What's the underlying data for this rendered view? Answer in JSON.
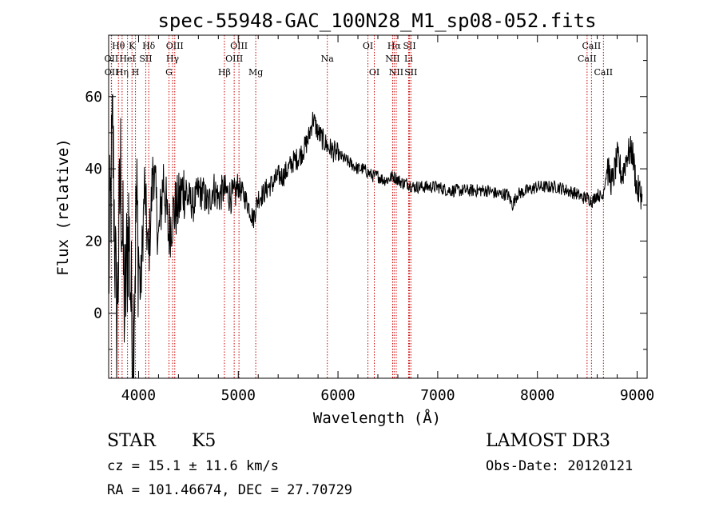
{
  "chart_data": {
    "type": "line",
    "title": "spec-55948-GAC_100N28_M1_sp08-052.fits",
    "xlabel": "Wavelength (Å)",
    "ylabel": "Flux (relative)",
    "xlim": [
      3700,
      9100
    ],
    "ylim": [
      -18,
      77
    ],
    "x_ticks": [
      4000,
      5000,
      6000,
      7000,
      8000,
      9000
    ],
    "y_ticks": [
      0,
      20,
      40,
      60
    ],
    "grid": false,
    "line_color": "#000000",
    "marker_color": "#cc0000",
    "series": [
      {
        "name": "flux",
        "x": [
          3700,
          3740,
          3780,
          3820,
          3860,
          3900,
          3940,
          3980,
          4020,
          4060,
          4100,
          4150,
          4200,
          4250,
          4300,
          4350,
          4400,
          4450,
          4500,
          4550,
          4600,
          4650,
          4700,
          4750,
          4800,
          4850,
          4900,
          4950,
          5000,
          5050,
          5100,
          5150,
          5200,
          5250,
          5300,
          5350,
          5400,
          5450,
          5500,
          5550,
          5600,
          5650,
          5700,
          5750,
          5800,
          5850,
          5900,
          5950,
          6000,
          6050,
          6100,
          6150,
          6200,
          6250,
          6300,
          6350,
          6400,
          6450,
          6500,
          6550,
          6600,
          6650,
          6700,
          6750,
          6800,
          6900,
          7000,
          7100,
          7200,
          7300,
          7400,
          7500,
          7600,
          7700,
          7750,
          7800,
          7900,
          8000,
          8100,
          8200,
          8300,
          8400,
          8450,
          8500,
          8550,
          8600,
          8650,
          8700,
          8750,
          8800,
          8850,
          8900,
          8950,
          9000,
          9050
        ],
        "y": [
          10,
          50,
          -5,
          40,
          0,
          25,
          -10,
          30,
          5,
          35,
          15,
          42,
          20,
          38,
          22,
          28,
          30,
          35,
          32,
          30,
          34,
          33,
          30,
          35,
          32,
          34,
          33,
          32,
          35,
          33,
          30,
          26,
          32,
          33,
          35,
          36,
          38,
          38,
          40,
          42,
          43,
          45,
          48,
          54,
          50,
          48,
          46,
          45,
          44,
          43,
          42,
          41,
          40,
          40,
          39,
          38,
          38,
          37,
          37,
          38,
          37,
          36,
          36,
          35,
          35,
          35,
          35,
          34,
          34,
          34,
          34,
          34,
          33,
          33,
          30,
          33,
          34,
          35,
          35,
          35,
          34,
          33,
          32,
          32,
          31,
          33,
          32,
          40,
          36,
          43,
          38,
          44,
          45,
          34,
          33
        ]
      }
    ],
    "lines": [
      {
        "name": "Hθ",
        "x": 3798,
        "row": 1
      },
      {
        "name": "OII",
        "x": 3727,
        "row": 2
      },
      {
        "name": "OII",
        "x": 3729,
        "row": 3
      },
      {
        "name": "Hη",
        "x": 3835,
        "row": 3
      },
      {
        "name": "HeI",
        "x": 3889,
        "row": 2
      },
      {
        "name": "K",
        "x": 3934,
        "row": 1
      },
      {
        "name": "H",
        "x": 3969,
        "row": 3
      },
      {
        "name": "SII",
        "x": 4072,
        "row": 2
      },
      {
        "name": "Hδ",
        "x": 4102,
        "row": 1
      },
      {
        "name": "OIII",
        "x": 4363,
        "row": 1
      },
      {
        "name": "Hγ",
        "x": 4341,
        "row": 2
      },
      {
        "name": "G",
        "x": 4305,
        "row": 3
      },
      {
        "name": "Hβ",
        "x": 4861,
        "row": 3
      },
      {
        "name": "OIII",
        "x": 5007,
        "row": 1
      },
      {
        "name": "OIII",
        "x": 4959,
        "row": 2
      },
      {
        "name": "Mg",
        "x": 5175,
        "row": 3
      },
      {
        "name": "Na",
        "x": 5893,
        "row": 2
      },
      {
        "name": "OI",
        "x": 6300,
        "row": 1
      },
      {
        "name": "OI",
        "x": 6364,
        "row": 3
      },
      {
        "name": "Hα",
        "x": 6563,
        "row": 1
      },
      {
        "name": "NII",
        "x": 6548,
        "row": 2
      },
      {
        "name": "NII",
        "x": 6584,
        "row": 3
      },
      {
        "name": "SII",
        "x": 6717,
        "row": 1
      },
      {
        "name": "Li",
        "x": 6708,
        "row": 2
      },
      {
        "name": "SII",
        "x": 6731,
        "row": 3
      },
      {
        "name": "CaII",
        "x": 8542,
        "row": 1
      },
      {
        "name": "CaII",
        "x": 8498,
        "row": 2
      },
      {
        "name": "CaII",
        "x": 8662,
        "row": 3
      }
    ]
  },
  "info": {
    "class": "STAR",
    "subclass": "K5",
    "survey": "LAMOST DR3",
    "cz": "cz = 15.1 ± 11.6 km/s",
    "obs_date": "Obs-Date: 20120121",
    "coords": "RA = 101.46674, DEC =  27.70729"
  }
}
